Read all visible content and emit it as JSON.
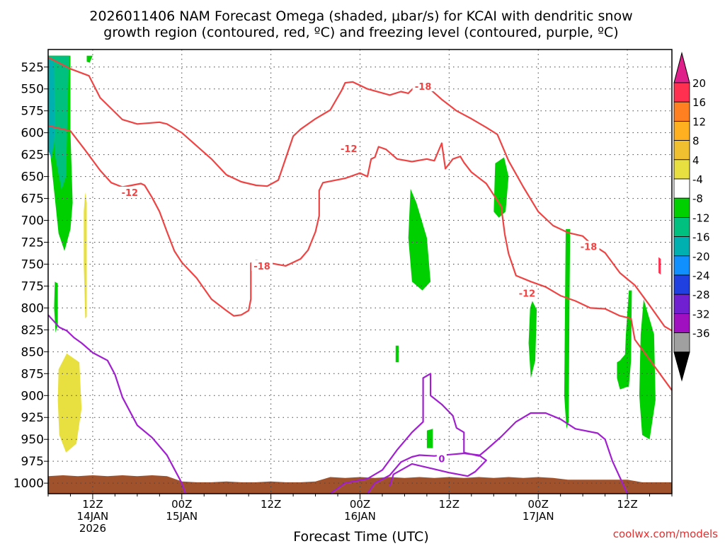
{
  "header": {
    "title_line1": "2026011406 NAM Forecast Omega (shaded, μbar/s) for KCAI with dendritic snow",
    "title_line2": "growth region (contoured, red, ºC) and freezing level (contoured, purple, ºC)"
  },
  "footer": {
    "xlabel": "Forecast Time (UTC)",
    "credit": "coolwx.com/models"
  },
  "chart_data": {
    "type": "time-height contour",
    "title": "2026011406 NAM Forecast Omega (shaded, μbar/s) for KCAI with dendritic snow growth region (contoured, red, ºC) and freezing level (contoured, purple, ºC)",
    "xlabel": "Forecast Time (UTC)",
    "ylabel": "",
    "x_unit": "hours from 2026-01-14 06Z",
    "xlim": [
      0,
      84
    ],
    "ylim": [
      1012,
      505
    ],
    "y_scale": "pressure (hPa, decreasing upward)",
    "grid": true,
    "y_ticks": [
      525,
      550,
      575,
      600,
      625,
      650,
      675,
      700,
      725,
      750,
      775,
      800,
      825,
      850,
      875,
      900,
      925,
      950,
      975,
      1000
    ],
    "x_ticks": [
      {
        "x": 6,
        "line1": "12Z",
        "line2": "14JAN",
        "line3": "2026"
      },
      {
        "x": 18,
        "line1": "00Z",
        "line2": "15JAN",
        "line3": ""
      },
      {
        "x": 30,
        "line1": "12Z",
        "line2": "",
        "line3": ""
      },
      {
        "x": 42,
        "line1": "00Z",
        "line2": "16JAN",
        "line3": ""
      },
      {
        "x": 54,
        "line1": "12Z",
        "line2": "",
        "line3": ""
      },
      {
        "x": 66,
        "line1": "00Z",
        "line2": "17JAN",
        "line3": ""
      },
      {
        "x": 78,
        "line1": "12Z",
        "line2": "",
        "line3": ""
      }
    ],
    "colorbar": {
      "unit": "μbar/s",
      "labels": [
        "20",
        "16",
        "12",
        "8",
        "4",
        "-4",
        "-8",
        "-12",
        "-16",
        "-20",
        "-24",
        "-28",
        "-32",
        "-36"
      ],
      "colors": [
        "#ff3050",
        "#ff8020",
        "#ffb020",
        "#f0c030",
        "#e8e040",
        "#ffffff",
        "#00d000",
        "#00c080",
        "#00b0b0",
        "#1090ff",
        "#2040e0",
        "#7020d0",
        "#a010c0",
        "#a0a0a0"
      ],
      "top_arrow_color": "#e0208a",
      "bottom_arrow_color": "#000000"
    },
    "ground_color": "#a0522d",
    "series": [
      {
        "name": "-18",
        "kind": "isotherm",
        "color": "#ee4444",
        "label_at": [
          50.5,
          547
        ],
        "points": [
          [
            0,
            514
          ],
          [
            3,
            527
          ],
          [
            5.5,
            535
          ],
          [
            7,
            560
          ],
          [
            10,
            585
          ],
          [
            12,
            590
          ],
          [
            15,
            588
          ],
          [
            16,
            590
          ],
          [
            18,
            600
          ],
          [
            20,
            615
          ],
          [
            22,
            630
          ],
          [
            24,
            648
          ],
          [
            26,
            656
          ],
          [
            28,
            660
          ],
          [
            29.5,
            661
          ],
          [
            31,
            654
          ],
          [
            33,
            604
          ],
          [
            34,
            596
          ],
          [
            36,
            584
          ],
          [
            38,
            574
          ],
          [
            39.5,
            552
          ],
          [
            40,
            543
          ],
          [
            41,
            542
          ],
          [
            43,
            550
          ],
          [
            46,
            557
          ],
          [
            47.5,
            553
          ],
          [
            48.5,
            555
          ],
          [
            50,
            542
          ],
          [
            51,
            547
          ],
          [
            53,
            562
          ],
          [
            55,
            575
          ],
          [
            57,
            584
          ],
          [
            59,
            594
          ],
          [
            60.5,
            602
          ],
          [
            62,
            632
          ],
          [
            64,
            662
          ],
          [
            66,
            690
          ],
          [
            68,
            706
          ],
          [
            70,
            714
          ],
          [
            72,
            718
          ],
          [
            73,
            726
          ],
          [
            75,
            737
          ],
          [
            77,
            760
          ],
          [
            79,
            774
          ],
          [
            81,
            797
          ],
          [
            83,
            821
          ],
          [
            84,
            826
          ]
        ]
      },
      {
        "name": "-12",
        "kind": "isotherm",
        "color": "#ee4444",
        "label_at": [
          11,
          668
        ],
        "points": [
          [
            0,
            592
          ],
          [
            3,
            598
          ],
          [
            5,
            620
          ],
          [
            7,
            643
          ],
          [
            8.5,
            657
          ],
          [
            10,
            662
          ],
          [
            12.5,
            658
          ],
          [
            13,
            660
          ],
          [
            14,
            674
          ],
          [
            15,
            690
          ],
          [
            16,
            713
          ],
          [
            17,
            735
          ],
          [
            18,
            748
          ],
          [
            20,
            766
          ],
          [
            22,
            790
          ],
          [
            24,
            803
          ],
          [
            25,
            809
          ],
          [
            26,
            808
          ],
          [
            27,
            803
          ],
          [
            27.3,
            790
          ],
          [
            27.3,
            749
          ],
          [
            28,
            746
          ],
          [
            30,
            749
          ],
          [
            32,
            752
          ],
          [
            33,
            748
          ],
          [
            34,
            744
          ],
          [
            35,
            734
          ],
          [
            36,
            713
          ],
          [
            36.5,
            695
          ],
          [
            36.5,
            666
          ],
          [
            37,
            657
          ],
          [
            40,
            652
          ],
          [
            42,
            646
          ],
          [
            43,
            650
          ],
          [
            43.5,
            630
          ],
          [
            44,
            628
          ],
          [
            44.5,
            616
          ],
          [
            45.5,
            619
          ],
          [
            47,
            630
          ],
          [
            49,
            633
          ],
          [
            51,
            630
          ],
          [
            52,
            632
          ],
          [
            53,
            612
          ],
          [
            53.5,
            641
          ],
          [
            54.5,
            630
          ],
          [
            55.5,
            627
          ],
          [
            56,
            634
          ],
          [
            57,
            645
          ],
          [
            59,
            658
          ],
          [
            61,
            684
          ],
          [
            61.5,
            716
          ],
          [
            62,
            738
          ],
          [
            63,
            763
          ],
          [
            65,
            770
          ],
          [
            67,
            776
          ],
          [
            69,
            786
          ],
          [
            71,
            792
          ],
          [
            73,
            800
          ],
          [
            75,
            801
          ],
          [
            77,
            809
          ],
          [
            78.5,
            812
          ],
          [
            79,
            836
          ],
          [
            81,
            859
          ],
          [
            84,
            894
          ]
        ]
      },
      {
        "name": "0",
        "kind": "freezing-level",
        "color": "#a020d0",
        "label_at": [
          53,
          972
        ],
        "points": [
          [
            0,
            808
          ],
          [
            1.5,
            822
          ],
          [
            2.5,
            826
          ],
          [
            3.5,
            834
          ],
          [
            4.5,
            840
          ],
          [
            6,
            851
          ],
          [
            8,
            860
          ],
          [
            9,
            876
          ],
          [
            10,
            902
          ],
          [
            12,
            934
          ],
          [
            14,
            948
          ],
          [
            16,
            968
          ],
          [
            17,
            984
          ],
          [
            18,
            1000
          ],
          [
            18.5,
            1012
          ]
        ]
      },
      {
        "name": "0",
        "kind": "freezing-level",
        "color": "#a020d0",
        "points": [
          [
            38,
            1012
          ],
          [
            40,
            1000
          ],
          [
            43,
            995
          ],
          [
            45,
            985
          ],
          [
            47,
            962
          ],
          [
            49,
            942
          ],
          [
            50.5,
            930
          ],
          [
            50.5,
            880
          ],
          [
            51.5,
            875
          ],
          [
            51.5,
            900
          ],
          [
            53,
            910
          ],
          [
            54.5,
            923
          ],
          [
            55,
            937
          ],
          [
            56,
            942
          ],
          [
            56,
            965
          ],
          [
            58,
            969
          ],
          [
            59,
            962
          ],
          [
            61,
            947
          ],
          [
            63,
            930
          ],
          [
            65,
            920
          ],
          [
            67,
            920
          ],
          [
            69,
            927
          ],
          [
            71,
            938
          ],
          [
            74,
            943
          ],
          [
            75,
            950
          ],
          [
            76,
            975
          ],
          [
            78,
            1012
          ]
        ]
      },
      {
        "name": "0",
        "kind": "freezing-level",
        "color": "#a020d0",
        "points": [
          [
            43,
            1012
          ],
          [
            44,
            1000
          ],
          [
            46,
            991
          ],
          [
            47.5,
            976
          ],
          [
            49,
            970
          ],
          [
            50,
            968
          ],
          [
            52,
            969
          ],
          [
            56,
            966
          ],
          [
            58,
            968
          ],
          [
            59,
            974
          ],
          [
            57.5,
            987
          ],
          [
            56.5,
            992
          ],
          [
            54,
            988
          ],
          [
            52,
            984
          ],
          [
            49,
            978
          ],
          [
            46.5,
            990
          ],
          [
            46,
            1004
          ]
        ]
      }
    ]
  }
}
